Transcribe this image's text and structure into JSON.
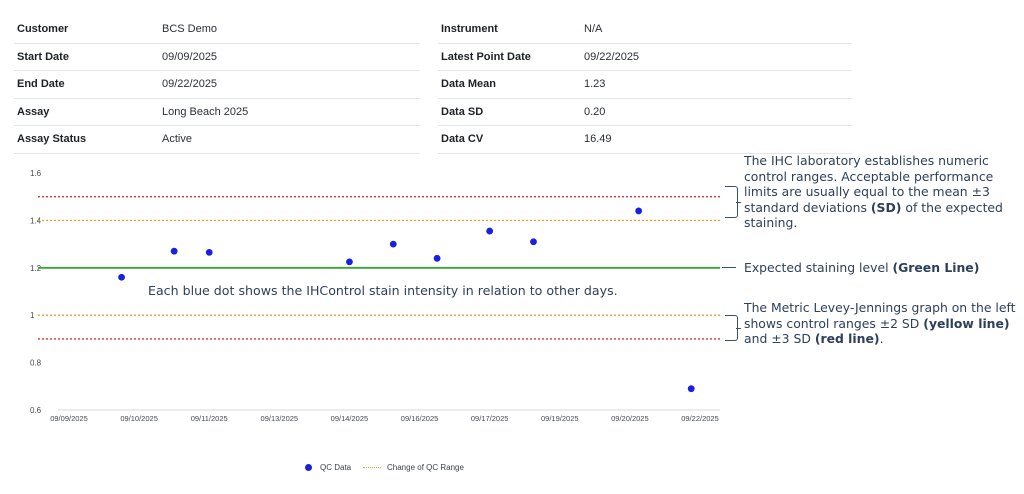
{
  "info_left": [
    {
      "label": "Customer",
      "value": "BCS Demo"
    },
    {
      "label": "Start Date",
      "value": "09/09/2025"
    },
    {
      "label": "End Date",
      "value": "09/22/2025"
    },
    {
      "label": "Assay",
      "value": "Long Beach 2025"
    },
    {
      "label": "Assay Status",
      "value": "Active"
    }
  ],
  "info_right": [
    {
      "label": "Instrument",
      "value": "N/A"
    },
    {
      "label": "Latest Point Date",
      "value": "09/22/2025"
    },
    {
      "label": "Data Mean",
      "value": "1.23"
    },
    {
      "label": "Data SD",
      "value": "0.20"
    },
    {
      "label": "Data CV",
      "value": "16.49"
    }
  ],
  "annotations": {
    "limits_pre": "The IHC laboratory establishes numeric control ranges. Acceptable performance limits are usually equal to the mean ±3 standard deviations ",
    "limits_bold": "(SD)",
    "limits_post": " of the expected staining.",
    "expected_pre": "Expected staining level ",
    "expected_bold": "(Green Line)",
    "graph_1": "The Metric Levey-Jennings graph on the left shows control ranges ±2 SD ",
    "graph_bold_1": "(yellow line)",
    "graph_2": " and ±3 SD ",
    "graph_bold_2": "(red line)",
    "graph_3": ".",
    "dot_note": "Each blue dot shows the IHControl stain intensity in relation to other days."
  },
  "chart_data": {
    "type": "scatter",
    "x_tick_labels": [
      "09/09/2025",
      "09/10/2025",
      "09/11/2025",
      "09/13/2025",
      "09/14/2025",
      "09/16/2025",
      "09/17/2025",
      "09/19/2025",
      "09/20/2025",
      "09/22/2025"
    ],
    "y_ticks": [
      0.6,
      0.8,
      1,
      1.2,
      1.4,
      1.6
    ],
    "ylim": [
      0.6,
      1.6
    ],
    "grid": false,
    "legend_position": "bottom",
    "series": [
      {
        "name": "QC Data",
        "color": "#1a20e0",
        "x": [
          "09/09/2025 18:00",
          "09/10/2025 12:00",
          "09/11/2025 00:00",
          "09/14/2025 00:00",
          "09/15/2025 06:00",
          "09/16/2025 06:00",
          "09/17/2025 00:00",
          "09/18/2025 06:00",
          "09/20/2025 06:00",
          "09/21/2025 18:00"
        ],
        "y": [
          1.16,
          1.27,
          1.265,
          1.225,
          1.3,
          1.24,
          1.355,
          1.31,
          1.44,
          0.69
        ]
      }
    ],
    "reference_lines": [
      {
        "role": "mean",
        "y": 1.2,
        "color": "#3aa33a",
        "style": "solid"
      },
      {
        "role": "+2SD",
        "y": 1.4,
        "color": "#e3a13a",
        "style": "dotted"
      },
      {
        "role": "-2SD",
        "y": 1.0,
        "color": "#e3a13a",
        "style": "dotted"
      },
      {
        "role": "+3SD",
        "y": 1.5,
        "color": "#e03030",
        "style": "dotted"
      },
      {
        "role": "-3SD",
        "y": 0.9,
        "color": "#e03030",
        "style": "dotted"
      }
    ],
    "legend": [
      {
        "label": "QC Data"
      },
      {
        "label": "Change of QC Range"
      }
    ]
  }
}
